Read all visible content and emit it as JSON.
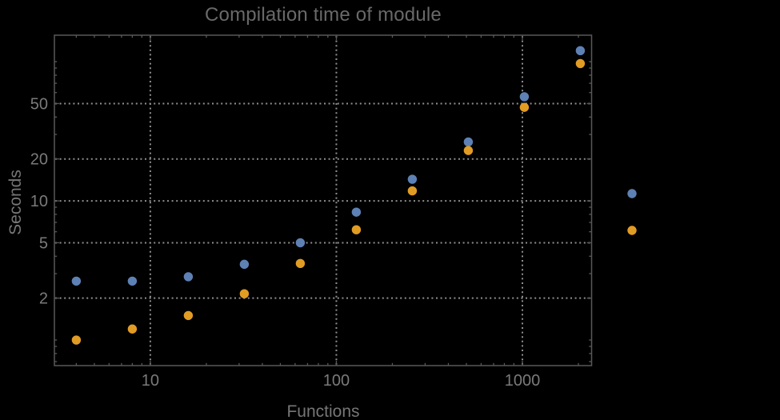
{
  "window": {
    "background": "#000000"
  },
  "title": {
    "text": "Compilation time of module"
  },
  "axes": {
    "x_label": "Functions",
    "y_label": "Seconds"
  },
  "styles": {
    "frame_color": "#585858",
    "grid_color": "#8f8f8f",
    "tick_label_color": "#7a7a7a",
    "axis_label_color": "#767676",
    "title_color": "#696969",
    "series1_color": "#5e81b5",
    "series2_color": "#e19c24"
  },
  "chart_data": {
    "type": "scatter",
    "title": "Compilation time of module",
    "xlabel": "Functions",
    "ylabel": "Seconds",
    "x_scale": "log",
    "y_scale": "log",
    "grid": "dotted",
    "x": [
      4,
      8,
      16,
      32,
      64,
      128,
      256,
      512,
      1024,
      2048
    ],
    "series": [
      {
        "name": "series-blue",
        "color": "#5e81b5",
        "values": [
          2.65,
          2.65,
          2.85,
          3.5,
          5.0,
          8.3,
          14.3,
          26.5,
          56,
          120
        ]
      },
      {
        "name": "series-orange",
        "color": "#e19c24",
        "values": [
          1.0,
          1.2,
          1.5,
          2.15,
          3.55,
          6.2,
          11.8,
          23,
          47,
          97
        ]
      }
    ],
    "x_ticks": [
      10,
      100,
      1000
    ],
    "y_ticks": [
      2,
      5,
      10,
      20,
      50
    ],
    "x_range": [
      3.05,
      2355
    ],
    "y_range": [
      0.655,
      155
    ],
    "legend": {
      "type": "markers-only",
      "labels_visible": false
    }
  }
}
